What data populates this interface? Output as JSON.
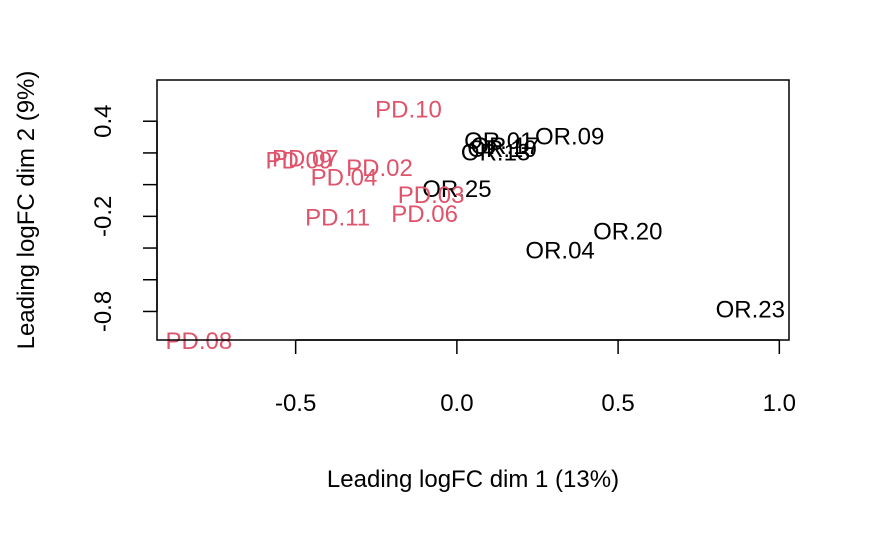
{
  "chart_data": {
    "type": "scatter",
    "title": "",
    "xlabel": "Leading logFC dim 1 (13%)",
    "ylabel": "Leading logFC dim 2 (9%)",
    "xlim": [
      -0.93,
      1.03
    ],
    "ylim": [
      -0.98,
      0.66
    ],
    "grid": false,
    "legend": "none",
    "xticks": [
      {
        "value": -0.5,
        "label": "-0.5"
      },
      {
        "value": 0.0,
        "label": "0.0"
      },
      {
        "value": 0.5,
        "label": "0.5"
      },
      {
        "value": 1.0,
        "label": "1.0"
      }
    ],
    "yticks": [
      {
        "value": -0.8,
        "label": "-0.8"
      },
      {
        "value": -0.2,
        "label": "-0.2"
      },
      {
        "value": 0.4,
        "label": "0.4"
      }
    ],
    "yminor": [
      -0.6,
      -0.4,
      0.0,
      0.2
    ],
    "colors": {
      "PD": "#DF536B",
      "OR": "#000000"
    },
    "points": [
      {
        "label": "PD.10",
        "x": -0.15,
        "y": 0.48,
        "group": "PD"
      },
      {
        "label": "OR.09",
        "x": 0.35,
        "y": 0.31,
        "group": "OR"
      },
      {
        "label": "OR.01",
        "x": 0.13,
        "y": 0.28,
        "group": "OR"
      },
      {
        "label": "OR.17",
        "x": 0.15,
        "y": 0.25,
        "group": "OR"
      },
      {
        "label": "OR.13",
        "x": 0.12,
        "y": 0.21,
        "group": "OR"
      },
      {
        "label": "OR.10",
        "x": 0.14,
        "y": 0.23,
        "group": "OR"
      },
      {
        "label": "PD.07",
        "x": -0.47,
        "y": 0.17,
        "group": "PD"
      },
      {
        "label": "PD.09",
        "x": -0.49,
        "y": 0.16,
        "group": "PD"
      },
      {
        "label": "PD.02",
        "x": -0.24,
        "y": 0.11,
        "group": "PD"
      },
      {
        "label": "PD.04",
        "x": -0.35,
        "y": 0.05,
        "group": "PD"
      },
      {
        "label": "OR.25",
        "x": 0.0,
        "y": -0.02,
        "group": "OR"
      },
      {
        "label": "PD.03",
        "x": -0.08,
        "y": -0.06,
        "group": "PD"
      },
      {
        "label": "PD.06",
        "x": -0.1,
        "y": -0.18,
        "group": "PD"
      },
      {
        "label": "PD.11",
        "x": -0.37,
        "y": -0.2,
        "group": "PD"
      },
      {
        "label": "OR.20",
        "x": 0.53,
        "y": -0.29,
        "group": "OR"
      },
      {
        "label": "OR.04",
        "x": 0.32,
        "y": -0.41,
        "group": "OR"
      },
      {
        "label": "OR.23",
        "x": 0.91,
        "y": -0.78,
        "group": "OR"
      },
      {
        "label": "PD.08",
        "x": -0.8,
        "y": -0.98,
        "group": "PD"
      }
    ]
  }
}
